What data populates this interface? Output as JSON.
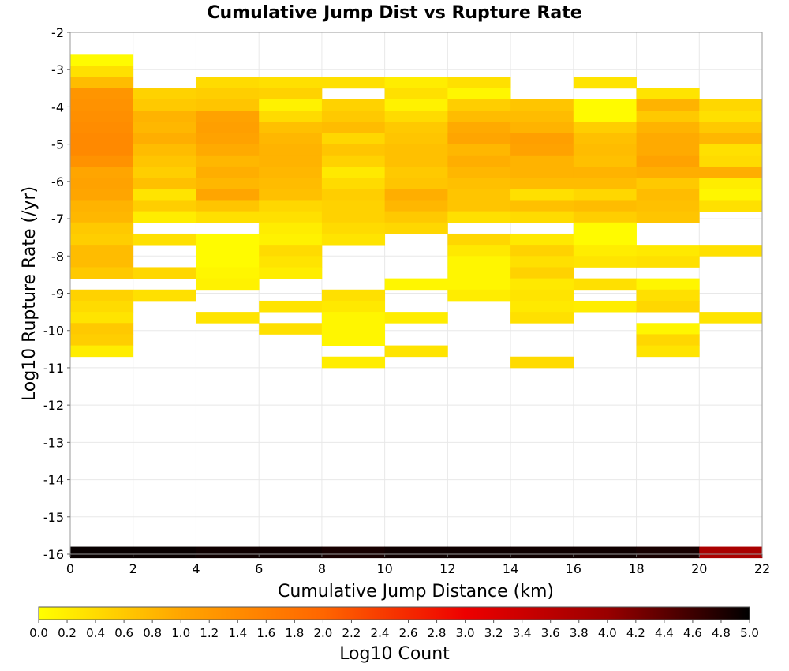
{
  "chart_data": {
    "type": "heatmap",
    "title": "Cumulative Jump Dist vs Rupture Rate",
    "xlabel": "Cumulative Jump Distance (km)",
    "ylabel": "Log10 Rupture Rate (/yr)",
    "colorbar_label": "Log10 Count",
    "xlim": [
      0,
      22
    ],
    "ylim": [
      -16,
      -2
    ],
    "x_ticks": [
      0,
      2,
      4,
      6,
      8,
      10,
      12,
      14,
      16,
      18,
      20,
      22
    ],
    "y_ticks": [
      -2,
      -3,
      -4,
      -5,
      -6,
      -7,
      -8,
      -9,
      -10,
      -11,
      -12,
      -13,
      -14,
      -15,
      -16
    ],
    "colorbar_range": [
      0,
      5
    ],
    "colorbar_ticks": [
      "0.0",
      "0.2",
      "0.4",
      "0.6",
      "0.8",
      "1.0",
      "1.2",
      "1.4",
      "1.6",
      "1.8",
      "2.0",
      "2.2",
      "2.4",
      "2.6",
      "2.8",
      "3.0",
      "3.2",
      "3.4",
      "3.6",
      "3.8",
      "4.0",
      "4.2",
      "4.4",
      "4.6",
      "4.8",
      "5.0"
    ],
    "colormap": [
      "#ffff00",
      "#ffa500",
      "#ff6600",
      "#ee0000",
      "#990000",
      "#000000"
    ],
    "grid": true,
    "x_bin_width": 2,
    "y_bin_height": 0.3,
    "cells": [
      {
        "x": 0,
        "y": -2.75,
        "v": 0.05
      },
      {
        "x": 0,
        "y": -3.05,
        "v": 0.35
      },
      {
        "x": 0,
        "y": -3.35,
        "v": 0.75
      },
      {
        "x": 0,
        "y": -3.65,
        "v": 1.25
      },
      {
        "x": 0,
        "y": -3.95,
        "v": 1.3
      },
      {
        "x": 0,
        "y": -4.25,
        "v": 1.35
      },
      {
        "x": 0,
        "y": -4.55,
        "v": 1.4
      },
      {
        "x": 0,
        "y": -4.85,
        "v": 1.45
      },
      {
        "x": 0,
        "y": -5.15,
        "v": 1.45
      },
      {
        "x": 0,
        "y": -5.45,
        "v": 1.3
      },
      {
        "x": 0,
        "y": -5.75,
        "v": 1.0
      },
      {
        "x": 0,
        "y": -6.05,
        "v": 1.05
      },
      {
        "x": 0,
        "y": -6.35,
        "v": 1.0
      },
      {
        "x": 0,
        "y": -6.65,
        "v": 0.85
      },
      {
        "x": 0,
        "y": -6.95,
        "v": 0.8
      },
      {
        "x": 0,
        "y": -7.25,
        "v": 0.6
      },
      {
        "x": 0,
        "y": -7.55,
        "v": 0.55
      },
      {
        "x": 0,
        "y": -7.85,
        "v": 0.75
      },
      {
        "x": 0,
        "y": -8.15,
        "v": 0.75
      },
      {
        "x": 0,
        "y": -8.45,
        "v": 0.6
      },
      {
        "x": 0,
        "y": -9.05,
        "v": 0.5
      },
      {
        "x": 0,
        "y": -9.35,
        "v": 0.4
      },
      {
        "x": 0,
        "y": -9.65,
        "v": 0.3
      },
      {
        "x": 0,
        "y": -9.95,
        "v": 0.6
      },
      {
        "x": 0,
        "y": -10.25,
        "v": 0.55
      },
      {
        "x": 0,
        "y": -10.55,
        "v": 0.2
      },
      {
        "x": 2,
        "y": -3.65,
        "v": 0.5
      },
      {
        "x": 2,
        "y": -3.95,
        "v": 0.6
      },
      {
        "x": 2,
        "y": -4.25,
        "v": 0.85
      },
      {
        "x": 2,
        "y": -4.55,
        "v": 0.8
      },
      {
        "x": 2,
        "y": -4.85,
        "v": 0.9
      },
      {
        "x": 2,
        "y": -5.15,
        "v": 0.75
      },
      {
        "x": 2,
        "y": -5.45,
        "v": 0.65
      },
      {
        "x": 2,
        "y": -5.75,
        "v": 0.55
      },
      {
        "x": 2,
        "y": -6.05,
        "v": 0.7
      },
      {
        "x": 2,
        "y": -6.35,
        "v": 0.3
      },
      {
        "x": 2,
        "y": -6.65,
        "v": 0.55
      },
      {
        "x": 2,
        "y": -6.95,
        "v": 0.2
      },
      {
        "x": 2,
        "y": -7.55,
        "v": 0.35
      },
      {
        "x": 2,
        "y": -8.45,
        "v": 0.45
      },
      {
        "x": 2,
        "y": -9.05,
        "v": 0.35
      },
      {
        "x": 4,
        "y": -3.35,
        "v": 0.4
      },
      {
        "x": 4,
        "y": -3.65,
        "v": 0.55
      },
      {
        "x": 4,
        "y": -3.95,
        "v": 0.65
      },
      {
        "x": 4,
        "y": -4.25,
        "v": 1.05
      },
      {
        "x": 4,
        "y": -4.55,
        "v": 1.1
      },
      {
        "x": 4,
        "y": -4.85,
        "v": 1.05
      },
      {
        "x": 4,
        "y": -5.15,
        "v": 0.95
      },
      {
        "x": 4,
        "y": -5.45,
        "v": 0.8
      },
      {
        "x": 4,
        "y": -5.75,
        "v": 0.9
      },
      {
        "x": 4,
        "y": -6.05,
        "v": 0.8
      },
      {
        "x": 4,
        "y": -6.35,
        "v": 1.0
      },
      {
        "x": 4,
        "y": -6.65,
        "v": 0.65
      },
      {
        "x": 4,
        "y": -6.95,
        "v": 0.35
      },
      {
        "x": 4,
        "y": -7.55,
        "v": 0.05
      },
      {
        "x": 4,
        "y": -7.85,
        "v": 0.05
      },
      {
        "x": 4,
        "y": -8.15,
        "v": 0.05
      },
      {
        "x": 4,
        "y": -8.45,
        "v": 0.1
      },
      {
        "x": 4,
        "y": -8.75,
        "v": 0.15
      },
      {
        "x": 4,
        "y": -9.65,
        "v": 0.3
      },
      {
        "x": 6,
        "y": -3.35,
        "v": 0.35
      },
      {
        "x": 6,
        "y": -3.65,
        "v": 0.5
      },
      {
        "x": 6,
        "y": -3.95,
        "v": 0.15
      },
      {
        "x": 6,
        "y": -4.25,
        "v": 0.4
      },
      {
        "x": 6,
        "y": -4.55,
        "v": 0.7
      },
      {
        "x": 6,
        "y": -4.85,
        "v": 0.8
      },
      {
        "x": 6,
        "y": -5.15,
        "v": 0.85
      },
      {
        "x": 6,
        "y": -5.45,
        "v": 0.85
      },
      {
        "x": 6,
        "y": -5.75,
        "v": 0.8
      },
      {
        "x": 6,
        "y": -6.05,
        "v": 0.75
      },
      {
        "x": 6,
        "y": -6.35,
        "v": 0.7
      },
      {
        "x": 6,
        "y": -6.65,
        "v": 0.45
      },
      {
        "x": 6,
        "y": -6.95,
        "v": 0.35
      },
      {
        "x": 6,
        "y": -7.25,
        "v": 0.2
      },
      {
        "x": 6,
        "y": -7.55,
        "v": 0.15
      },
      {
        "x": 6,
        "y": -7.85,
        "v": 0.4
      },
      {
        "x": 6,
        "y": -8.15,
        "v": 0.3
      },
      {
        "x": 6,
        "y": -8.45,
        "v": 0.2
      },
      {
        "x": 6,
        "y": -9.35,
        "v": 0.3
      },
      {
        "x": 6,
        "y": -9.95,
        "v": 0.35
      },
      {
        "x": 8,
        "y": -3.35,
        "v": 0.35
      },
      {
        "x": 8,
        "y": -3.95,
        "v": 0.5
      },
      {
        "x": 8,
        "y": -4.25,
        "v": 0.6
      },
      {
        "x": 8,
        "y": -4.55,
        "v": 0.75
      },
      {
        "x": 8,
        "y": -4.85,
        "v": 0.45
      },
      {
        "x": 8,
        "y": -5.15,
        "v": 0.65
      },
      {
        "x": 8,
        "y": -5.45,
        "v": 0.5
      },
      {
        "x": 8,
        "y": -5.75,
        "v": 0.25
      },
      {
        "x": 8,
        "y": -6.05,
        "v": 0.4
      },
      {
        "x": 8,
        "y": -6.35,
        "v": 0.55
      },
      {
        "x": 8,
        "y": -6.65,
        "v": 0.5
      },
      {
        "x": 8,
        "y": -6.95,
        "v": 0.5
      },
      {
        "x": 8,
        "y": -7.25,
        "v": 0.4
      },
      {
        "x": 8,
        "y": -7.55,
        "v": 0.3
      },
      {
        "x": 8,
        "y": -9.05,
        "v": 0.35
      },
      {
        "x": 8,
        "y": -9.35,
        "v": 0.25
      },
      {
        "x": 8,
        "y": -9.65,
        "v": 0.1
      },
      {
        "x": 8,
        "y": -9.95,
        "v": 0.1
      },
      {
        "x": 8,
        "y": -10.25,
        "v": 0.1
      },
      {
        "x": 8,
        "y": -10.85,
        "v": 0.2
      },
      {
        "x": 10,
        "y": -3.35,
        "v": 0.2
      },
      {
        "x": 10,
        "y": -3.65,
        "v": 0.35
      },
      {
        "x": 10,
        "y": -3.95,
        "v": 0.15
      },
      {
        "x": 10,
        "y": -4.25,
        "v": 0.4
      },
      {
        "x": 10,
        "y": -4.55,
        "v": 0.6
      },
      {
        "x": 10,
        "y": -4.85,
        "v": 0.65
      },
      {
        "x": 10,
        "y": -5.15,
        "v": 0.7
      },
      {
        "x": 10,
        "y": -5.45,
        "v": 0.7
      },
      {
        "x": 10,
        "y": -5.75,
        "v": 0.6
      },
      {
        "x": 10,
        "y": -6.05,
        "v": 0.65
      },
      {
        "x": 10,
        "y": -6.35,
        "v": 0.9
      },
      {
        "x": 10,
        "y": -6.65,
        "v": 0.8
      },
      {
        "x": 10,
        "y": -6.95,
        "v": 0.6
      },
      {
        "x": 10,
        "y": -7.25,
        "v": 0.45
      },
      {
        "x": 10,
        "y": -8.75,
        "v": 0.1
      },
      {
        "x": 10,
        "y": -9.65,
        "v": 0.2
      },
      {
        "x": 10,
        "y": -10.55,
        "v": 0.3
      },
      {
        "x": 12,
        "y": -3.35,
        "v": 0.35
      },
      {
        "x": 12,
        "y": -3.65,
        "v": 0.1
      },
      {
        "x": 12,
        "y": -3.95,
        "v": 0.55
      },
      {
        "x": 12,
        "y": -4.25,
        "v": 0.75
      },
      {
        "x": 12,
        "y": -4.55,
        "v": 0.95
      },
      {
        "x": 12,
        "y": -4.85,
        "v": 1.0
      },
      {
        "x": 12,
        "y": -5.15,
        "v": 0.8
      },
      {
        "x": 12,
        "y": -5.45,
        "v": 0.9
      },
      {
        "x": 12,
        "y": -5.75,
        "v": 0.8
      },
      {
        "x": 12,
        "y": -6.05,
        "v": 0.7
      },
      {
        "x": 12,
        "y": -6.35,
        "v": 0.65
      },
      {
        "x": 12,
        "y": -6.65,
        "v": 0.65
      },
      {
        "x": 12,
        "y": -6.95,
        "v": 0.35
      },
      {
        "x": 12,
        "y": -7.55,
        "v": 0.45
      },
      {
        "x": 12,
        "y": -7.85,
        "v": 0.25
      },
      {
        "x": 12,
        "y": -8.15,
        "v": 0.1
      },
      {
        "x": 12,
        "y": -8.45,
        "v": 0.1
      },
      {
        "x": 12,
        "y": -8.75,
        "v": 0.1
      },
      {
        "x": 12,
        "y": -9.05,
        "v": 0.2
      },
      {
        "x": 14,
        "y": -3.95,
        "v": 0.65
      },
      {
        "x": 14,
        "y": -4.25,
        "v": 0.75
      },
      {
        "x": 14,
        "y": -4.55,
        "v": 0.85
      },
      {
        "x": 14,
        "y": -4.85,
        "v": 1.1
      },
      {
        "x": 14,
        "y": -5.15,
        "v": 1.05
      },
      {
        "x": 14,
        "y": -5.45,
        "v": 0.85
      },
      {
        "x": 14,
        "y": -5.75,
        "v": 0.85
      },
      {
        "x": 14,
        "y": -6.05,
        "v": 0.75
      },
      {
        "x": 14,
        "y": -6.35,
        "v": 0.35
      },
      {
        "x": 14,
        "y": -6.65,
        "v": 0.7
      },
      {
        "x": 14,
        "y": -6.95,
        "v": 0.4
      },
      {
        "x": 14,
        "y": -7.55,
        "v": 0.25
      },
      {
        "x": 14,
        "y": -7.85,
        "v": 0.5
      },
      {
        "x": 14,
        "y": -8.15,
        "v": 0.35
      },
      {
        "x": 14,
        "y": -8.45,
        "v": 0.5
      },
      {
        "x": 14,
        "y": -8.75,
        "v": 0.25
      },
      {
        "x": 14,
        "y": -9.05,
        "v": 0.3
      },
      {
        "x": 14,
        "y": -9.35,
        "v": 0.25
      },
      {
        "x": 14,
        "y": -9.65,
        "v": 0.35
      },
      {
        "x": 14,
        "y": -10.85,
        "v": 0.4
      },
      {
        "x": 16,
        "y": -3.35,
        "v": 0.3
      },
      {
        "x": 16,
        "y": -3.95,
        "v": 0.05
      },
      {
        "x": 16,
        "y": -4.25,
        "v": 0.05
      },
      {
        "x": 16,
        "y": -4.55,
        "v": 0.55
      },
      {
        "x": 16,
        "y": -4.85,
        "v": 0.7
      },
      {
        "x": 16,
        "y": -5.15,
        "v": 0.75
      },
      {
        "x": 16,
        "y": -5.45,
        "v": 0.7
      },
      {
        "x": 16,
        "y": -5.75,
        "v": 0.85
      },
      {
        "x": 16,
        "y": -6.05,
        "v": 0.75
      },
      {
        "x": 16,
        "y": -6.35,
        "v": 0.45
      },
      {
        "x": 16,
        "y": -6.65,
        "v": 0.75
      },
      {
        "x": 16,
        "y": -6.95,
        "v": 0.55
      },
      {
        "x": 16,
        "y": -7.25,
        "v": 0.05
      },
      {
        "x": 16,
        "y": -7.55,
        "v": 0.05
      },
      {
        "x": 16,
        "y": -7.85,
        "v": 0.2
      },
      {
        "x": 16,
        "y": -8.15,
        "v": 0.3
      },
      {
        "x": 16,
        "y": -8.75,
        "v": 0.35
      },
      {
        "x": 16,
        "y": -9.35,
        "v": 0.2
      },
      {
        "x": 18,
        "y": -3.65,
        "v": 0.3
      },
      {
        "x": 18,
        "y": -3.95,
        "v": 0.85
      },
      {
        "x": 18,
        "y": -4.25,
        "v": 0.6
      },
      {
        "x": 18,
        "y": -4.55,
        "v": 0.85
      },
      {
        "x": 18,
        "y": -4.85,
        "v": 0.95
      },
      {
        "x": 18,
        "y": -5.15,
        "v": 0.95
      },
      {
        "x": 18,
        "y": -5.45,
        "v": 1.05
      },
      {
        "x": 18,
        "y": -5.75,
        "v": 0.9
      },
      {
        "x": 18,
        "y": -6.05,
        "v": 0.6
      },
      {
        "x": 18,
        "y": -6.35,
        "v": 0.75
      },
      {
        "x": 18,
        "y": -6.65,
        "v": 0.7
      },
      {
        "x": 18,
        "y": -6.95,
        "v": 0.65
      },
      {
        "x": 18,
        "y": -7.85,
        "v": 0.25
      },
      {
        "x": 18,
        "y": -8.15,
        "v": 0.35
      },
      {
        "x": 18,
        "y": -8.75,
        "v": 0.1
      },
      {
        "x": 18,
        "y": -9.05,
        "v": 0.35
      },
      {
        "x": 18,
        "y": -9.35,
        "v": 0.45
      },
      {
        "x": 18,
        "y": -9.95,
        "v": 0.1
      },
      {
        "x": 18,
        "y": -10.25,
        "v": 0.45
      },
      {
        "x": 18,
        "y": -10.55,
        "v": 0.3
      },
      {
        "x": 20,
        "y": -3.95,
        "v": 0.45
      },
      {
        "x": 20,
        "y": -4.25,
        "v": 0.35
      },
      {
        "x": 20,
        "y": -4.55,
        "v": 0.6
      },
      {
        "x": 20,
        "y": -4.85,
        "v": 0.8
      },
      {
        "x": 20,
        "y": -5.15,
        "v": 0.35
      },
      {
        "x": 20,
        "y": -5.45,
        "v": 0.4
      },
      {
        "x": 20,
        "y": -5.75,
        "v": 0.9
      },
      {
        "x": 20,
        "y": -6.05,
        "v": 0.2
      },
      {
        "x": 20,
        "y": -6.35,
        "v": 0.1
      },
      {
        "x": 20,
        "y": -6.65,
        "v": 0.35
      },
      {
        "x": 20,
        "y": -7.85,
        "v": 0.35
      },
      {
        "x": 20,
        "y": -9.65,
        "v": 0.3
      },
      {
        "x": 0,
        "y": -15.95,
        "v": 4.95
      },
      {
        "x": 2,
        "y": -15.95,
        "v": 4.95
      },
      {
        "x": 4,
        "y": -15.95,
        "v": 4.9
      },
      {
        "x": 6,
        "y": -15.95,
        "v": 4.9
      },
      {
        "x": 8,
        "y": -15.95,
        "v": 4.85
      },
      {
        "x": 10,
        "y": -15.95,
        "v": 4.9
      },
      {
        "x": 12,
        "y": -15.95,
        "v": 4.9
      },
      {
        "x": 14,
        "y": -15.95,
        "v": 4.9
      },
      {
        "x": 16,
        "y": -15.95,
        "v": 4.9
      },
      {
        "x": 18,
        "y": -15.95,
        "v": 4.85
      },
      {
        "x": 20,
        "y": -15.95,
        "v": 3.8
      }
    ]
  }
}
